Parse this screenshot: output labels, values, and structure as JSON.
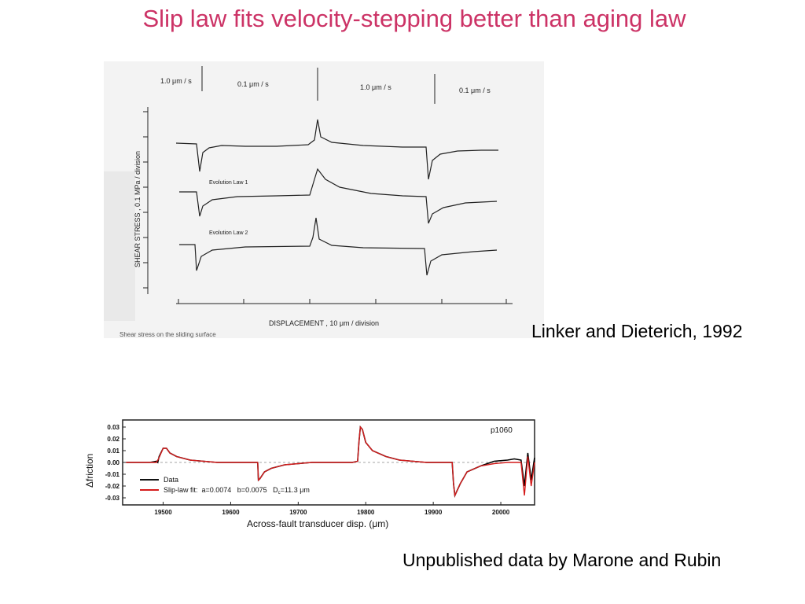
{
  "slide": {
    "title": "Slip law fits velocity-stepping better than aging law",
    "title_color": "#cc3366"
  },
  "figure_top": {
    "credit": "Linker and Dieterich, 1992",
    "velocity_labels": [
      "1.0 μm / s",
      "0.1 μm / s",
      "1.0 μm / s",
      "0.1 μm / s"
    ],
    "trace_labels": [
      "Evolution Law 1",
      "Evolution Law 2"
    ],
    "ylabel": "SHEAR STRESS , 0.1 MPa / division",
    "xlabel": "DISPLACEMENT , 10 μm / division",
    "caption_fragment": "Shear stress on the sliding surface"
  },
  "figure_bottom": {
    "credit": "Unpublished data by Marone and Rubin",
    "panel_label": "p1060",
    "ylabel": "Δfriction",
    "xlabel": "Across-fault transducer disp. (μm)",
    "legend": {
      "data": "Data",
      "fit": "Slip-law fit:  a=0.0074   b=0.0075   D",
      "fit_sub": "c",
      "fit_tail": "=11.3 μm"
    },
    "colors": {
      "data": "#000000",
      "fit": "#d41c1c"
    }
  },
  "chart_data": {
    "type": "line",
    "xlabel": "Across-fault transducer disp. (μm)",
    "ylabel": "Δfriction",
    "xticks": [
      19500,
      19600,
      19700,
      19800,
      19900,
      20000
    ],
    "yticks": [
      0.03,
      0.02,
      0.01,
      0.0,
      -0.01,
      -0.02,
      -0.03
    ],
    "xlim": [
      19440,
      20050
    ],
    "ylim": [
      -0.036,
      0.036
    ],
    "grid": false,
    "legend_position": "bottom-left",
    "series": [
      {
        "name": "Data",
        "x": [
          19445,
          19480,
          19490,
          19492,
          19494,
          19500,
          19505,
          19510,
          19520,
          19540,
          19560,
          19580,
          19600,
          19620,
          19640,
          19641,
          19643,
          19650,
          19660,
          19680,
          19700,
          19720,
          19740,
          19760,
          19780,
          19788,
          19790,
          19792,
          19795,
          19800,
          19810,
          19830,
          19850,
          19870,
          19890,
          19900,
          19920,
          19928,
          19930,
          19932,
          19940,
          19950,
          19970,
          19990,
          20010,
          20020,
          20030,
          20035,
          20040,
          20045,
          20050
        ],
        "y": [
          0.0,
          0.0,
          0.001,
          0.0,
          0.005,
          0.012,
          0.012,
          0.008,
          0.005,
          0.002,
          0.001,
          0.0,
          0.0,
          0.0,
          0.0,
          -0.015,
          -0.014,
          -0.008,
          -0.005,
          -0.002,
          -0.001,
          0.0,
          0.0,
          0.0,
          0.0,
          0.001,
          0.018,
          0.03,
          0.028,
          0.017,
          0.01,
          0.005,
          0.002,
          0.001,
          0.0,
          0.0,
          0.0,
          0.0,
          -0.018,
          -0.028,
          -0.018,
          -0.008,
          -0.003,
          0.001,
          0.002,
          0.003,
          0.002,
          -0.02,
          0.008,
          -0.015,
          0.004
        ]
      },
      {
        "name": "Slip-law fit:  a=0.0074   b=0.0075   Dc=11.3 μm",
        "x": [
          19445,
          19490,
          19494,
          19500,
          19505,
          19510,
          19520,
          19540,
          19560,
          19580,
          19600,
          19620,
          19640,
          19641,
          19643,
          19650,
          19660,
          19680,
          19700,
          19720,
          19740,
          19760,
          19780,
          19788,
          19790,
          19792,
          19795,
          19800,
          19810,
          19830,
          19850,
          19870,
          19890,
          19900,
          19920,
          19928,
          19930,
          19932,
          19940,
          19950,
          19970,
          19990,
          20010,
          20020,
          20030,
          20035,
          20040,
          20045,
          20050
        ],
        "y": [
          0.0,
          0.0,
          0.004,
          0.012,
          0.012,
          0.008,
          0.005,
          0.002,
          0.001,
          0.0,
          0.0,
          0.0,
          0.0,
          -0.015,
          -0.014,
          -0.008,
          -0.005,
          -0.002,
          -0.001,
          0.0,
          0.0,
          0.0,
          0.0,
          0.001,
          0.018,
          0.03,
          0.028,
          0.017,
          0.01,
          0.005,
          0.002,
          0.001,
          0.0,
          0.0,
          0.0,
          0.0,
          -0.018,
          -0.028,
          -0.018,
          -0.008,
          -0.003,
          -0.001,
          0.0,
          0.0,
          0.0,
          -0.028,
          0.005,
          -0.02,
          0.0
        ]
      }
    ]
  }
}
